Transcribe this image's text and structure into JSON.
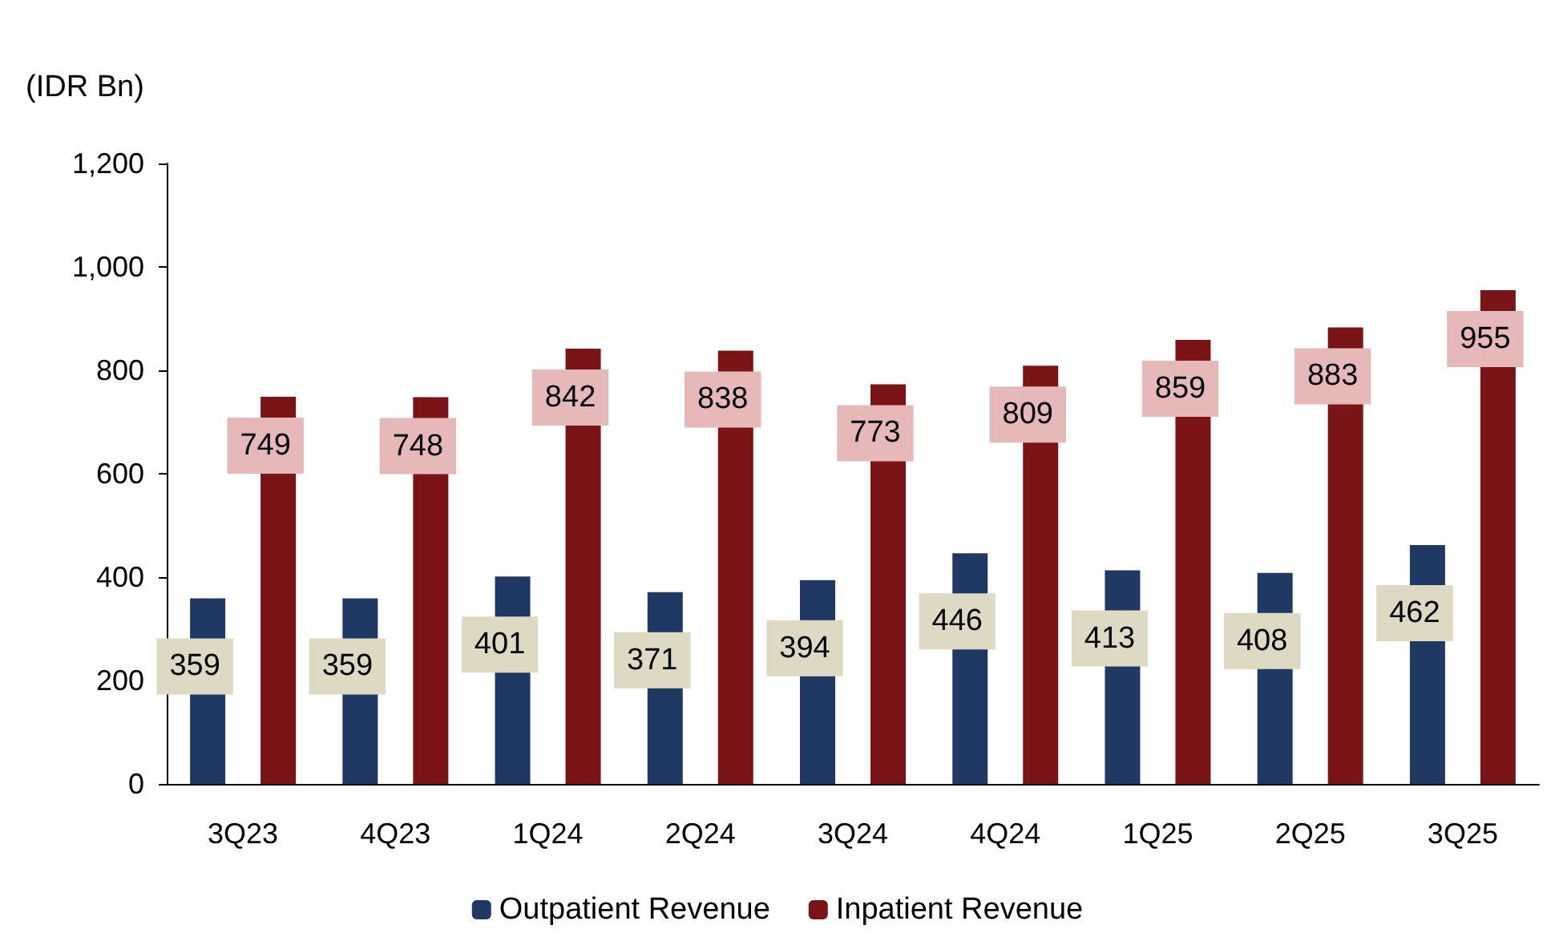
{
  "chart_data": {
    "type": "bar",
    "ylabel": "(IDR Bn)",
    "categories": [
      "3Q23",
      "4Q23",
      "1Q24",
      "2Q24",
      "3Q24",
      "4Q24",
      "1Q25",
      "2Q25",
      "3Q25"
    ],
    "series": [
      {
        "name": "Outpatient Revenue",
        "color": "#1f3864",
        "values": [
          359,
          359,
          401,
          371,
          394,
          446,
          413,
          408,
          462
        ]
      },
      {
        "name": "Inpatient Revenue",
        "color": "#7b1416",
        "values": [
          749,
          748,
          842,
          838,
          773,
          809,
          859,
          883,
          955
        ]
      }
    ],
    "ylim": [
      0,
      1200
    ],
    "yticks": [
      0,
      200,
      400,
      600,
      800,
      {
        "value": 1000,
        "label": "1,000"
      },
      {
        "value": 1200,
        "label": "1,200"
      }
    ],
    "grid": false,
    "legend": "bottom",
    "data_labels": true
  }
}
